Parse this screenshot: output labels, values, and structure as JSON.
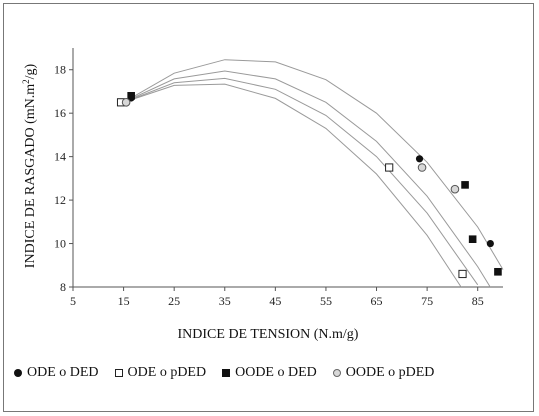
{
  "chart_data": {
    "type": "scatter",
    "title": "",
    "xlabel": "INDICE DE TENSION (N.m/g)",
    "ylabel": "INDICE DE RASGADO (mN.m",
    "ylabel_sup": "2",
    "ylabel_end": "/g)",
    "xlim": [
      5,
      90
    ],
    "ylim": [
      8,
      19
    ],
    "xticks": [
      5,
      15,
      25,
      35,
      45,
      55,
      65,
      75,
      85
    ],
    "yticks": [
      8,
      10,
      12,
      14,
      16,
      18
    ],
    "grid": false,
    "legend_position": "bottom",
    "series": [
      {
        "name": "ODE o DED",
        "marker": "filled-round",
        "color": "#111111",
        "points": [
          [
            16.5,
            16.7
          ],
          [
            73.5,
            13.9
          ],
          [
            87.5,
            10.0
          ]
        ],
        "curve": [
          [
            15,
            16.5
          ],
          [
            25,
            17.58
          ],
          [
            35,
            17.94
          ],
          [
            45,
            17.58
          ],
          [
            55,
            16.5
          ],
          [
            65,
            14.7
          ],
          [
            75,
            12.18
          ],
          [
            85,
            8.94
          ],
          [
            88,
            7.8
          ]
        ]
      },
      {
        "name": "ODE o pDED",
        "marker": "open-square",
        "color": "#222222",
        "points": [
          [
            14.5,
            16.5
          ],
          [
            67.5,
            13.5
          ],
          [
            82.0,
            8.6
          ]
        ],
        "curve": [
          [
            15,
            16.5
          ],
          [
            25,
            17.28
          ],
          [
            35,
            17.34
          ],
          [
            45,
            16.68
          ],
          [
            55,
            15.3
          ],
          [
            65,
            13.2
          ],
          [
            75,
            10.38
          ],
          [
            82,
            7.9
          ]
        ]
      },
      {
        "name": "OODE o DED",
        "marker": "filled-square",
        "color": "#111111",
        "points": [
          [
            16.5,
            16.8
          ],
          [
            82.5,
            12.7
          ],
          [
            84.0,
            10.2
          ],
          [
            89.0,
            8.7
          ]
        ],
        "curve": [
          [
            15,
            16.5
          ],
          [
            25,
            17.84
          ],
          [
            35,
            18.46
          ],
          [
            45,
            18.36
          ],
          [
            55,
            17.54
          ],
          [
            65,
            16.0
          ],
          [
            75,
            13.74
          ],
          [
            85,
            10.76
          ],
          [
            90,
            8.8
          ]
        ]
      },
      {
        "name": "OODE o pDED",
        "marker": "open-round",
        "color": "#666666",
        "points": [
          [
            15.5,
            16.5
          ],
          [
            74.0,
            13.5
          ],
          [
            80.5,
            12.5
          ]
        ],
        "curve": [
          [
            15,
            16.5
          ],
          [
            25,
            17.4
          ],
          [
            35,
            17.6
          ],
          [
            45,
            17.1
          ],
          [
            55,
            15.9
          ],
          [
            65,
            14.0
          ],
          [
            75,
            11.4
          ],
          [
            85,
            8.1
          ]
        ]
      }
    ]
  }
}
